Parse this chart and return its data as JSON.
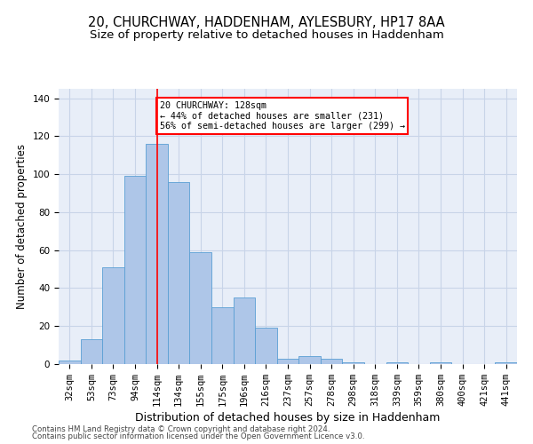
{
  "title1": "20, CHURCHWAY, HADDENHAM, AYLESBURY, HP17 8AA",
  "title2": "Size of property relative to detached houses in Haddenham",
  "xlabel": "Distribution of detached houses by size in Haddenham",
  "ylabel": "Number of detached properties",
  "categories": [
    "32sqm",
    "53sqm",
    "73sqm",
    "94sqm",
    "114sqm",
    "134sqm",
    "155sqm",
    "175sqm",
    "196sqm",
    "216sqm",
    "237sqm",
    "257sqm",
    "278sqm",
    "298sqm",
    "318sqm",
    "339sqm",
    "359sqm",
    "380sqm",
    "400sqm",
    "421sqm",
    "441sqm"
  ],
  "values": [
    2,
    13,
    51,
    99,
    116,
    96,
    59,
    30,
    35,
    19,
    3,
    4,
    3,
    1,
    0,
    1,
    0,
    1,
    0,
    0,
    1
  ],
  "bar_color": "#aec6e8",
  "bar_edge_color": "#5a9fd4",
  "red_line_x": 4.0,
  "annotation_text": "20 CHURCHWAY: 128sqm\n← 44% of detached houses are smaller (231)\n56% of semi-detached houses are larger (299) →",
  "annotation_box_color": "white",
  "annotation_box_edge": "red",
  "ylim": [
    0,
    145
  ],
  "yticks": [
    0,
    20,
    40,
    60,
    80,
    100,
    120,
    140
  ],
  "grid_color": "#c8d4e8",
  "background_color": "#e8eef8",
  "footer1": "Contains HM Land Registry data © Crown copyright and database right 2024.",
  "footer2": "Contains public sector information licensed under the Open Government Licence v3.0.",
  "title1_fontsize": 10.5,
  "title2_fontsize": 9.5,
  "tick_fontsize": 7.5,
  "ylabel_fontsize": 8.5,
  "xlabel_fontsize": 9,
  "footer_fontsize": 6.2
}
